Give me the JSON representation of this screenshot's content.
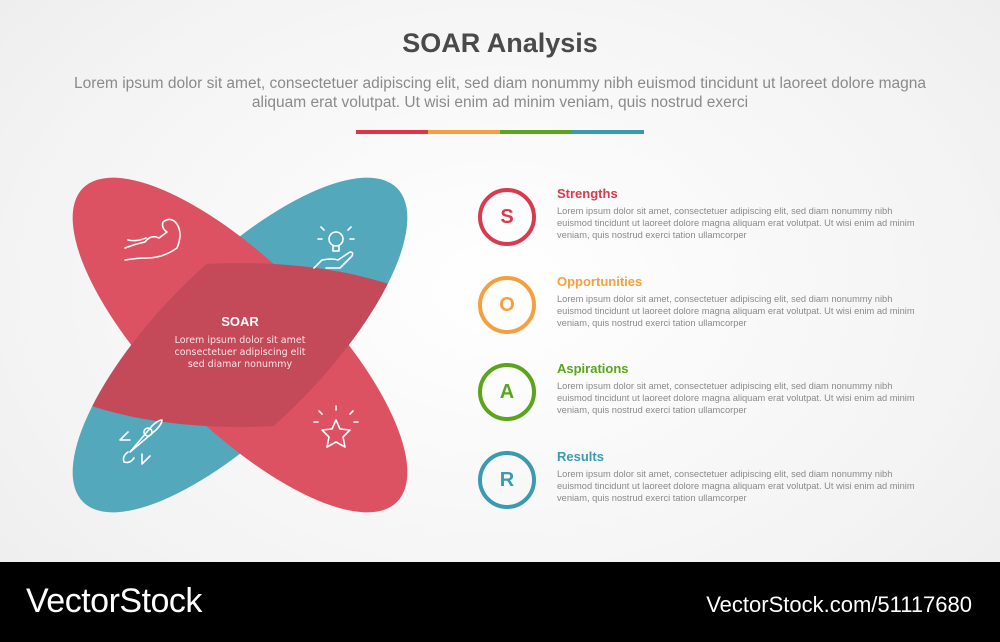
{
  "header": {
    "title": "SOAR Analysis",
    "subtitle": "Lorem ipsum dolor sit amet, consectetuer adipiscing elit, sed diam nonummy nibh euismod tincidunt ut laoreet dolore magna aliquam erat volutpat. Ut wisi enim ad minim veniam, quis nostrud exerci"
  },
  "colors": {
    "red": "#dc3545",
    "orange": "#f5a040",
    "green": "#5aa51c",
    "blue": "#3a9bb0",
    "petal_red": "#dc5262",
    "petal_blue": "#54a8bb",
    "center": "#c44a5a"
  },
  "diagram": {
    "center_title": "SOAR",
    "center_text": [
      "Lorem ipsum dolor sit amet",
      "consectetuer adipiscing elit",
      "sed diamar nonummy"
    ],
    "icons": [
      "flexed-arm-icon",
      "lightbulb-hand-icon",
      "rocket-icon",
      "star-icon"
    ]
  },
  "items": [
    {
      "letter": "S",
      "title": "Strengths",
      "text": "Lorem ipsum dolor sit amet, consectetuer adipiscing elit, sed diam nonummy nibh euismod tincidunt ut laoreet dolore magna aliquam erat volutpat. Ut wisi enim ad minim veniam, quis nostrud exerci tation ullamcorper"
    },
    {
      "letter": "O",
      "title": "Opportunities",
      "text": "Lorem ipsum dolor sit amet, consectetuer adipiscing elit, sed diam nonummy nibh euismod tincidunt ut laoreet dolore magna aliquam erat volutpat. Ut wisi enim ad minim veniam, quis nostrud exerci tation ullamcorper"
    },
    {
      "letter": "A",
      "title": "Aspirations",
      "text": "Lorem ipsum dolor sit amet, consectetuer adipiscing elit, sed diam nonummy nibh euismod tincidunt ut laoreet dolore magna aliquam erat volutpat. Ut wisi enim ad minim veniam, quis nostrud exerci tation ullamcorper"
    },
    {
      "letter": "R",
      "title": "Results",
      "text": "Lorem ipsum dolor sit amet, consectetuer adipiscing elit, sed diam nonummy nibh euismod tincidunt ut laoreet dolore magna aliquam erat volutpat. Ut wisi enim ad minim veniam, quis nostrud exerci tation ullamcorper"
    }
  ],
  "footer": {
    "logo": "VectorStock",
    "url": "VectorStock.com/51117680"
  }
}
